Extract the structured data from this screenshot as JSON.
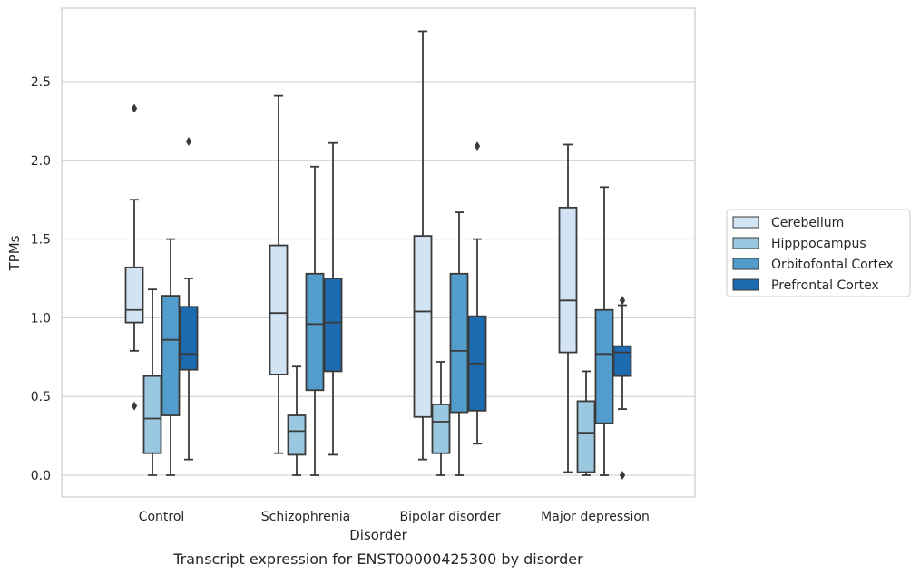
{
  "chart_data": {
    "type": "boxplot",
    "title": "",
    "caption": "Transcript expression for ENST00000425300 by disorder",
    "xlabel": "Disorder",
    "ylabel": "TPMs",
    "ylim": [
      -0.13,
      2.98
    ],
    "yticks": [
      0.0,
      0.5,
      1.0,
      1.5,
      2.0,
      2.5
    ],
    "ytick_labels": [
      "0.0",
      "0.5",
      "1.0",
      "1.5",
      "2.0",
      "2.5"
    ],
    "grid": "horizontal",
    "legend_position": "right",
    "categories": [
      "Control",
      "Schizophrenia",
      "Bipolar disorder",
      "Major depression"
    ],
    "series": [
      {
        "name": "Cerebellum",
        "color": "#d2e3f3",
        "boxes": [
          {
            "whisker_low": 0.79,
            "q1": 0.97,
            "median": 1.05,
            "q3": 1.32,
            "whisker_high": 1.75,
            "outliers": [
              2.33,
              0.44
            ]
          },
          {
            "whisker_low": 0.14,
            "q1": 0.64,
            "median": 1.03,
            "q3": 1.46,
            "whisker_high": 2.41,
            "outliers": []
          },
          {
            "whisker_low": 0.1,
            "q1": 0.37,
            "median": 1.04,
            "q3": 1.52,
            "whisker_high": 2.82,
            "outliers": []
          },
          {
            "whisker_low": 0.02,
            "q1": 0.78,
            "median": 1.11,
            "q3": 1.7,
            "whisker_high": 2.1,
            "outliers": []
          }
        ]
      },
      {
        "name": "Hipppocampus",
        "color": "#9ac8e0",
        "boxes": [
          {
            "whisker_low": 0.0,
            "q1": 0.14,
            "median": 0.36,
            "q3": 0.63,
            "whisker_high": 1.18,
            "outliers": []
          },
          {
            "whisker_low": 0.0,
            "q1": 0.13,
            "median": 0.28,
            "q3": 0.38,
            "whisker_high": 0.69,
            "outliers": []
          },
          {
            "whisker_low": 0.0,
            "q1": 0.14,
            "median": 0.34,
            "q3": 0.45,
            "whisker_high": 0.72,
            "outliers": []
          },
          {
            "whisker_low": 0.0,
            "q1": 0.02,
            "median": 0.27,
            "q3": 0.47,
            "whisker_high": 0.66,
            "outliers": []
          }
        ]
      },
      {
        "name": "Orbitofontal Cortex",
        "color": "#529dcc",
        "boxes": [
          {
            "whisker_low": 0.0,
            "q1": 0.38,
            "median": 0.86,
            "q3": 1.14,
            "whisker_high": 1.5,
            "outliers": []
          },
          {
            "whisker_low": 0.0,
            "q1": 0.54,
            "median": 0.96,
            "q3": 1.28,
            "whisker_high": 1.96,
            "outliers": []
          },
          {
            "whisker_low": 0.0,
            "q1": 0.4,
            "median": 0.79,
            "q3": 1.28,
            "whisker_high": 1.67,
            "outliers": []
          },
          {
            "whisker_low": 0.0,
            "q1": 0.33,
            "median": 0.77,
            "q3": 1.05,
            "whisker_high": 1.83,
            "outliers": []
          }
        ]
      },
      {
        "name": "Prefrontal Cortex",
        "color": "#1c6aaf",
        "boxes": [
          {
            "whisker_low": 0.1,
            "q1": 0.67,
            "median": 0.77,
            "q3": 1.07,
            "whisker_high": 1.25,
            "outliers": [
              2.12
            ]
          },
          {
            "whisker_low": 0.13,
            "q1": 0.66,
            "median": 0.97,
            "q3": 1.25,
            "whisker_high": 2.11,
            "outliers": []
          },
          {
            "whisker_low": 0.2,
            "q1": 0.41,
            "median": 0.71,
            "q3": 1.01,
            "whisker_high": 1.5,
            "outliers": [
              2.09
            ]
          },
          {
            "whisker_low": 0.42,
            "q1": 0.63,
            "median": 0.78,
            "q3": 0.82,
            "whisker_high": 1.08,
            "outliers": [
              1.11,
              0.0
            ]
          }
        ]
      }
    ]
  }
}
